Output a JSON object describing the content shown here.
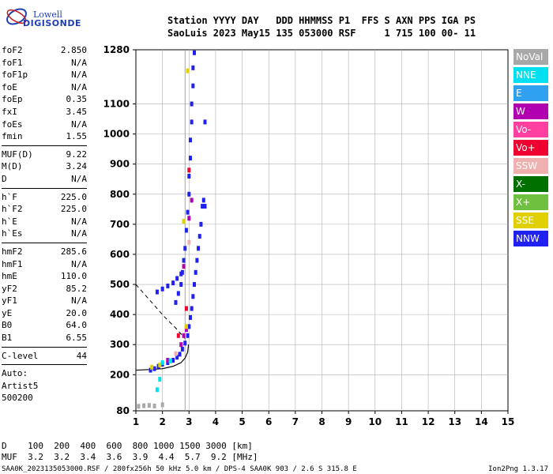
{
  "logo": {
    "line1": "Lowell",
    "line2": "DIGISONDE"
  },
  "header": {
    "line1": "Station YYYY DAY   DDD HHMMSS P1  FFS S AXN PPS IGA PS",
    "line2": "SaoLuis 2023 May15 135 053000 RSF     1 715 100 00- 11"
  },
  "params": {
    "group1": [
      {
        "name": "foF2",
        "value": "2.850"
      },
      {
        "name": "foF1",
        "value": "N/A"
      },
      {
        "name": "foF1p",
        "value": "N/A"
      },
      {
        "name": "foE",
        "value": "N/A"
      },
      {
        "name": "foEp",
        "value": "0.35"
      },
      {
        "name": "fxI",
        "value": "3.45"
      },
      {
        "name": "foEs",
        "value": "N/A"
      },
      {
        "name": "fmin",
        "value": "1.55"
      }
    ],
    "group2": [
      {
        "name": "MUF(D)",
        "value": "9.22"
      },
      {
        "name": "M(D)",
        "value": "3.24"
      },
      {
        "name": "D",
        "value": "N/A"
      }
    ],
    "group3": [
      {
        "name": "h`F",
        "value": "225.0"
      },
      {
        "name": "h`F2",
        "value": "225.0"
      },
      {
        "name": "h`E",
        "value": "N/A"
      },
      {
        "name": "h`Es",
        "value": "N/A"
      }
    ],
    "group4": [
      {
        "name": "hmF2",
        "value": "285.6"
      },
      {
        "name": "hmF1",
        "value": "N/A"
      },
      {
        "name": "hmE",
        "value": "110.0"
      },
      {
        "name": "yF2",
        "value": "85.2"
      },
      {
        "name": "yF1",
        "value": "N/A"
      },
      {
        "name": "yE",
        "value": "20.0"
      },
      {
        "name": "B0",
        "value": "64.0"
      },
      {
        "name": "B1",
        "value": "6.55"
      }
    ],
    "clevel": {
      "name": "C-level",
      "value": "44"
    },
    "auto": [
      "Auto:",
      "Artist5",
      "500200"
    ]
  },
  "legend": [
    {
      "label": "NoVal",
      "color": "#a8a8a8"
    },
    {
      "label": "NNE",
      "color": "#00e0f0"
    },
    {
      "label": "E",
      "color": "#30a0f0"
    },
    {
      "label": "W",
      "color": "#b000b0"
    },
    {
      "label": "Vo-",
      "color": "#ff40a0"
    },
    {
      "label": "Vo+",
      "color": "#ee0030"
    },
    {
      "label": "SSW",
      "color": "#f0b0b0"
    },
    {
      "label": "X-",
      "color": "#007000"
    },
    {
      "label": "X+",
      "color": "#70c040"
    },
    {
      "label": "SSE",
      "color": "#e0d000"
    },
    {
      "label": "NNW",
      "color": "#2020f0"
    }
  ],
  "footer": {
    "d_line": "D    100  200  400  600  800 1000 1500 3000 [km]",
    "muf_line": "MUF  3.2  3.2  3.4  3.6  3.9  4.4  5.7  9.2 [MHz]",
    "info": "SAA0K_2023135053000.RSF / 280fx256h 50 kHz 5.0 km / DPS-4 SAA0K 903 / 2.6 S 315.8 E",
    "version": "Ion2Png 1.3.17"
  },
  "chart_data": {
    "type": "scatter",
    "title": "",
    "xlabel": "",
    "ylabel": "",
    "xlim": [
      1,
      15
    ],
    "ylim": [
      80,
      1280
    ],
    "x_ticks": [
      1,
      2,
      3,
      4,
      5,
      6,
      7,
      8,
      9,
      10,
      11,
      12,
      13,
      14,
      15
    ],
    "y_ticks": [
      80,
      200,
      300,
      400,
      500,
      600,
      700,
      800,
      900,
      1000,
      1100,
      1280
    ],
    "grid": true,
    "series": [
      {
        "name": "NNW",
        "color": "#2020f0",
        "points": [
          [
            1.55,
            215
          ],
          [
            1.7,
            220
          ],
          [
            1.85,
            228
          ],
          [
            2.0,
            235
          ],
          [
            2.2,
            240
          ],
          [
            2.4,
            248
          ],
          [
            2.55,
            258
          ],
          [
            2.65,
            268
          ],
          [
            2.75,
            285
          ],
          [
            2.85,
            305
          ],
          [
            2.95,
            330
          ],
          [
            3.0,
            360
          ],
          [
            3.05,
            390
          ],
          [
            3.1,
            420
          ],
          [
            3.15,
            460
          ],
          [
            3.2,
            500
          ],
          [
            3.25,
            540
          ],
          [
            3.3,
            580
          ],
          [
            3.35,
            620
          ],
          [
            3.4,
            660
          ],
          [
            3.45,
            700
          ],
          [
            3.5,
            760
          ],
          [
            2.5,
            440
          ],
          [
            2.6,
            470
          ],
          [
            2.7,
            500
          ],
          [
            2.75,
            540
          ],
          [
            2.8,
            580
          ],
          [
            2.85,
            620
          ],
          [
            2.9,
            680
          ],
          [
            2.95,
            740
          ],
          [
            3.0,
            800
          ],
          [
            3.0,
            860
          ],
          [
            3.05,
            920
          ],
          [
            3.05,
            980
          ],
          [
            3.1,
            1040
          ],
          [
            3.1,
            1100
          ],
          [
            3.15,
            1160
          ],
          [
            3.15,
            1220
          ],
          [
            3.2,
            1270
          ],
          [
            1.8,
            475
          ],
          [
            2.0,
            485
          ],
          [
            2.2,
            495
          ],
          [
            2.4,
            505
          ],
          [
            2.55,
            520
          ],
          [
            2.7,
            535
          ],
          [
            3.6,
            1040
          ],
          [
            3.55,
            780
          ],
          [
            3.6,
            760
          ]
        ]
      },
      {
        "name": "W",
        "color": "#b000b0",
        "points": [
          [
            2.7,
            300
          ],
          [
            2.8,
            330
          ],
          [
            2.9,
            350
          ],
          [
            3.0,
            720
          ],
          [
            3.1,
            780
          ],
          [
            2.2,
            248
          ],
          [
            2.8,
            560
          ]
        ]
      },
      {
        "name": "SSE",
        "color": "#e0d000",
        "points": [
          [
            1.6,
            225
          ],
          [
            1.9,
            232
          ],
          [
            2.3,
            245
          ],
          [
            2.9,
            360
          ],
          [
            2.8,
            710
          ],
          [
            2.95,
            1210
          ]
        ]
      },
      {
        "name": "NNE",
        "color": "#00e0f0",
        "points": [
          [
            1.8,
            150
          ],
          [
            1.9,
            185
          ],
          [
            2.0,
            240
          ],
          [
            2.3,
            246
          ]
        ]
      },
      {
        "name": "Vo+",
        "color": "#ee0030",
        "points": [
          [
            2.6,
            330
          ],
          [
            2.9,
            420
          ],
          [
            3.0,
            880
          ]
        ]
      },
      {
        "name": "SSW",
        "color": "#f0b0b0",
        "points": [
          [
            2.5,
            270
          ],
          [
            3.0,
            640
          ]
        ]
      },
      {
        "name": "NoVal",
        "color": "#a8a8a8",
        "points": [
          [
            1.1,
            95
          ],
          [
            1.3,
            97
          ],
          [
            1.5,
            98
          ],
          [
            1.7,
            96
          ],
          [
            2.0,
            100
          ]
        ]
      }
    ],
    "profile_curve": [
      [
        1.0,
        215
      ],
      [
        1.5,
        217
      ],
      [
        2.0,
        220
      ],
      [
        2.4,
        228
      ],
      [
        2.7,
        240
      ],
      [
        2.85,
        255
      ],
      [
        2.95,
        275
      ],
      [
        2.98,
        300
      ]
    ],
    "dashed_curve": [
      [
        1.0,
        500
      ],
      [
        1.3,
        470
      ],
      [
        1.7,
        430
      ],
      [
        2.1,
        390
      ],
      [
        2.5,
        355
      ],
      [
        2.85,
        320
      ]
    ]
  }
}
